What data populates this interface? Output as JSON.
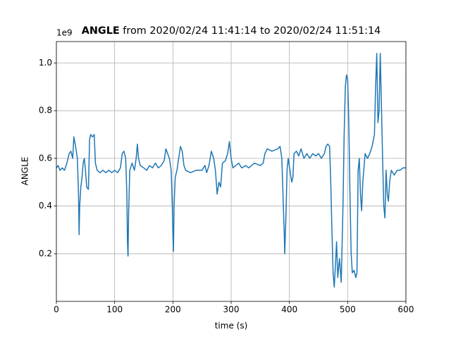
{
  "chart_data": {
    "type": "line",
    "title_bold": "ANGLE",
    "title": " from 2020/02/24 11:41:14 to 2020/02/24 11:51:14",
    "y_offset_label": "1e9",
    "xlabel": "time (s)",
    "ylabel": "ANGLE",
    "xlim": [
      0,
      600
    ],
    "ylim": [
      0,
      1.09
    ],
    "xticks": [
      0,
      100,
      200,
      300,
      400,
      500,
      600
    ],
    "yticks": [
      0.2,
      0.4,
      0.6,
      0.8,
      {
        "value": 1,
        "label": "1.0"
      }
    ],
    "grid": true,
    "color": "#1f77b4",
    "x": [
      0,
      3,
      6,
      10,
      14,
      18,
      22,
      25,
      28,
      30,
      33,
      36,
      38,
      39,
      40,
      42,
      44,
      46,
      48,
      50,
      52,
      55,
      57,
      59,
      62,
      65,
      67,
      70,
      75,
      80,
      85,
      90,
      95,
      100,
      105,
      110,
      113,
      116,
      119,
      121,
      122,
      123,
      124,
      126,
      130,
      134,
      137,
      139,
      141,
      144,
      150,
      155,
      160,
      165,
      170,
      175,
      180,
      185,
      188,
      191,
      194,
      197,
      199,
      200,
      201,
      202,
      204,
      207,
      210,
      213,
      216,
      219,
      222,
      230,
      240,
      250,
      255,
      258,
      262,
      266,
      270,
      273,
      276,
      279,
      282,
      285,
      290,
      294,
      297,
      300,
      303,
      308,
      313,
      318,
      325,
      330,
      340,
      350,
      355,
      358,
      362,
      370,
      380,
      384,
      387,
      389,
      391,
      392,
      394,
      396,
      398,
      401,
      404,
      406,
      408,
      412,
      416,
      420,
      425,
      430,
      435,
      440,
      445,
      450,
      455,
      460,
      463,
      466,
      469,
      471,
      473,
      475,
      477,
      479,
      481,
      483,
      486,
      489,
      492,
      494,
      496,
      498,
      500,
      502,
      504,
      506,
      508,
      511,
      514,
      516,
      518,
      520,
      522,
      524,
      526,
      530,
      534,
      538,
      542,
      546,
      548,
      550,
      552,
      554,
      556,
      558,
      560,
      562,
      564,
      566,
      568,
      570,
      572,
      575,
      580,
      585,
      590,
      595,
      600
    ],
    "values": [
      0.56,
      0.57,
      0.55,
      0.56,
      0.55,
      0.58,
      0.62,
      0.63,
      0.6,
      0.69,
      0.65,
      0.6,
      0.45,
      0.28,
      0.4,
      0.48,
      0.52,
      0.58,
      0.6,
      0.55,
      0.48,
      0.47,
      0.68,
      0.7,
      0.69,
      0.7,
      0.58,
      0.55,
      0.54,
      0.55,
      0.54,
      0.55,
      0.54,
      0.55,
      0.54,
      0.56,
      0.62,
      0.63,
      0.6,
      0.45,
      0.25,
      0.19,
      0.37,
      0.55,
      0.58,
      0.55,
      0.6,
      0.66,
      0.6,
      0.57,
      0.56,
      0.55,
      0.57,
      0.56,
      0.58,
      0.56,
      0.57,
      0.59,
      0.64,
      0.62,
      0.6,
      0.55,
      0.4,
      0.28,
      0.21,
      0.4,
      0.52,
      0.55,
      0.6,
      0.65,
      0.63,
      0.57,
      0.55,
      0.54,
      0.55,
      0.55,
      0.57,
      0.54,
      0.57,
      0.63,
      0.6,
      0.55,
      0.45,
      0.5,
      0.48,
      0.58,
      0.59,
      0.62,
      0.67,
      0.6,
      0.56,
      0.57,
      0.58,
      0.56,
      0.57,
      0.56,
      0.58,
      0.57,
      0.58,
      0.62,
      0.64,
      0.63,
      0.64,
      0.65,
      0.6,
      0.45,
      0.3,
      0.2,
      0.35,
      0.55,
      0.6,
      0.55,
      0.5,
      0.52,
      0.62,
      0.63,
      0.61,
      0.64,
      0.6,
      0.62,
      0.6,
      0.62,
      0.61,
      0.62,
      0.6,
      0.62,
      0.65,
      0.66,
      0.65,
      0.5,
      0.3,
      0.12,
      0.06,
      0.15,
      0.25,
      0.1,
      0.18,
      0.08,
      0.4,
      0.7,
      0.9,
      0.95,
      0.93,
      0.75,
      0.45,
      0.2,
      0.12,
      0.13,
      0.1,
      0.12,
      0.55,
      0.6,
      0.45,
      0.38,
      0.5,
      0.62,
      0.6,
      0.62,
      0.65,
      0.7,
      0.9,
      1.04,
      0.75,
      0.8,
      1.04,
      0.82,
      0.6,
      0.4,
      0.35,
      0.55,
      0.45,
      0.42,
      0.5,
      0.55,
      0.53,
      0.55,
      0.55,
      0.56,
      0.56
    ]
  }
}
